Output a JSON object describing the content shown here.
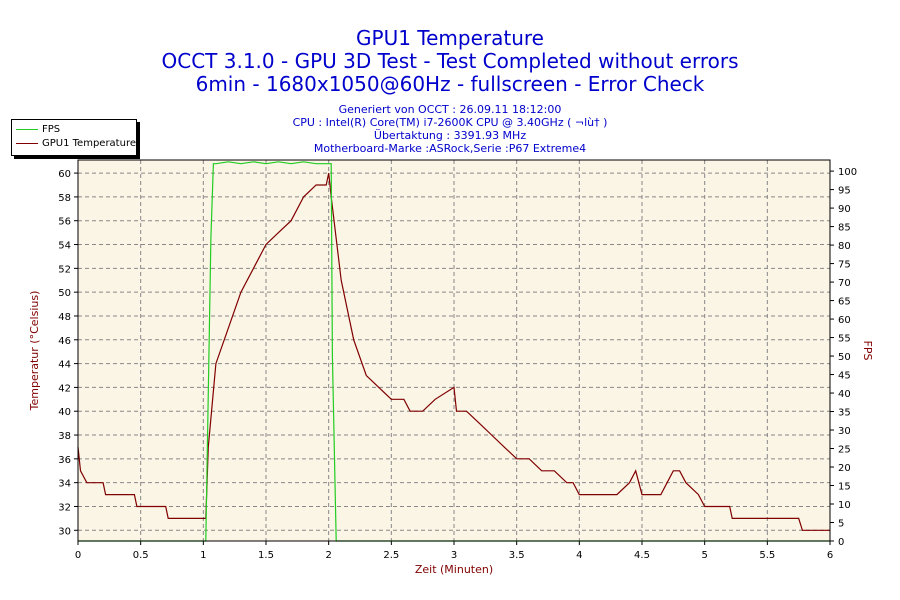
{
  "header": {
    "title1": "GPU1 Temperature",
    "title2": "OCCT 3.1.0 - GPU 3D Test - Test Completed without errors",
    "title3": "6min - 1680x1050@60Hz - fullscreen - Error Check",
    "info1": "Generiert von OCCT : 26.09.11 18:12:00",
    "info2": "CPU : Intel(R) Core(TM) i7-2600K CPU @ 3.40GHz ( ¬lù† )",
    "info3": "Übertaktung : 3391.93 MHz",
    "info4": "Motherboard-Marke :ASRock,Serie :P67 Extreme4"
  },
  "legend": [
    {
      "name": "FPS",
      "color": "#22cc22"
    },
    {
      "name": "GPU1 Temperature",
      "color": "#800000"
    }
  ],
  "chart_data": {
    "type": "line",
    "xlabel": "Zeit (Minuten)",
    "ylabel_left": "Temperatur (°Celsius)",
    "ylabel_right": "FPS",
    "xlim": [
      0,
      6
    ],
    "ylim_left": [
      29.1,
      61.1
    ],
    "ylim_right": [
      0,
      103
    ],
    "xticks": [
      0,
      0.5,
      1,
      1.5,
      2,
      2.5,
      3,
      3.5,
      4,
      4.5,
      5,
      5.5,
      6
    ],
    "xtick_labels": [
      "0",
      "0.5",
      "1",
      "1.5",
      "2",
      "2.5",
      "3",
      "3.5",
      "4",
      "4.5",
      "5",
      "5.5",
      "6"
    ],
    "yticks_left": [
      30,
      32,
      34,
      36,
      38,
      40,
      42,
      44,
      46,
      48,
      50,
      52,
      54,
      56,
      58,
      60
    ],
    "yticks_right": [
      0,
      5,
      10,
      15,
      20,
      25,
      30,
      35,
      40,
      45,
      50,
      55,
      60,
      65,
      70,
      75,
      80,
      85,
      90,
      95,
      100
    ],
    "grid": true,
    "background": "#fbf5e6",
    "series": [
      {
        "name": "GPU1 Temperature",
        "axis": "left",
        "color": "#800000",
        "x": [
          0,
          0.02,
          0.07,
          0.2,
          0.22,
          0.45,
          0.47,
          0.7,
          0.72,
          1.02,
          1.04,
          1.1,
          1.2,
          1.3,
          1.4,
          1.5,
          1.6,
          1.7,
          1.8,
          1.9,
          1.98,
          2.0,
          2.02,
          2.1,
          2.2,
          2.3,
          2.4,
          2.5,
          2.6,
          2.65,
          2.75,
          2.85,
          3.0,
          3.02,
          3.1,
          3.2,
          3.3,
          3.4,
          3.5,
          3.6,
          3.7,
          3.8,
          3.9,
          3.95,
          4.0,
          4.2,
          4.3,
          4.4,
          4.45,
          4.5,
          4.55,
          4.65,
          4.7,
          4.75,
          4.8,
          4.85,
          4.95,
          5.0,
          5.2,
          5.22,
          5.5,
          5.75,
          5.78,
          6.0
        ],
        "y": [
          37,
          35,
          34,
          34,
          33,
          33,
          32,
          32,
          31,
          31,
          37,
          44,
          47,
          50,
          52,
          54,
          55,
          56,
          58,
          59,
          59,
          60,
          58,
          51,
          46,
          43,
          42,
          41,
          41,
          40,
          40,
          41,
          42,
          40,
          40,
          39,
          38,
          37,
          36,
          36,
          35,
          35,
          34,
          34,
          33,
          33,
          33,
          34,
          35,
          33,
          33,
          33,
          34,
          35,
          35,
          34,
          33,
          32,
          32,
          31,
          31,
          31,
          30,
          30
        ]
      },
      {
        "name": "FPS",
        "axis": "right",
        "color": "#22cc22",
        "x": [
          0,
          1.02,
          1.06,
          1.08,
          1.1,
          1.2,
          1.3,
          1.4,
          1.5,
          1.6,
          1.7,
          1.8,
          1.9,
          2.0,
          2.02,
          2.03,
          2.06,
          6.0
        ],
        "y": [
          0,
          0,
          82,
          102,
          102,
          102.5,
          102,
          102.5,
          102,
          102.5,
          102,
          102.5,
          102,
          102,
          102,
          50,
          0,
          0
        ]
      }
    ]
  }
}
